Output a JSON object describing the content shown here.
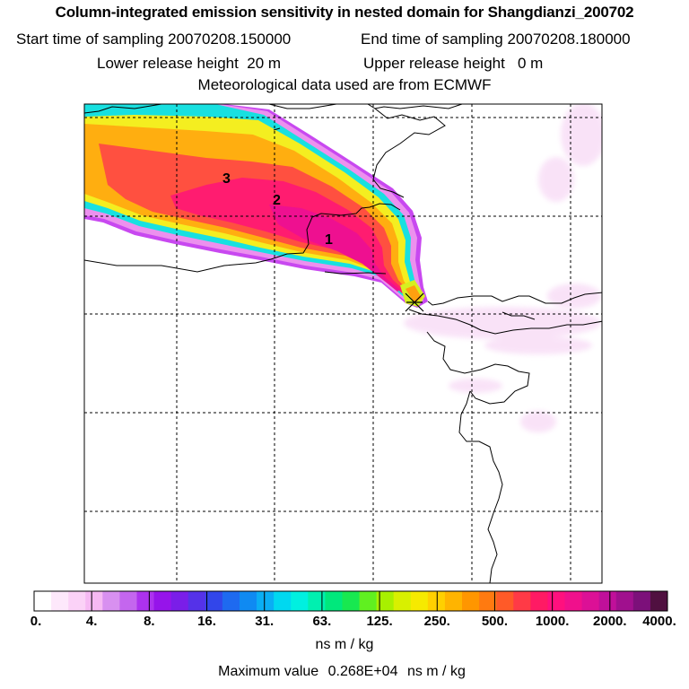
{
  "header": {
    "title": "Column-integrated emission sensitivity in nested domain for Shangdianzi_200702",
    "start_label": "Start time of sampling",
    "start_value": "20070208.150000",
    "end_label": "End time of sampling",
    "end_value": "20070208.180000",
    "lower_label": "Lower release height",
    "lower_value": "20 m",
    "upper_label": "Upper release height",
    "upper_value": "0 m",
    "met_line": "Meteorological data used are from ECMWF"
  },
  "map": {
    "plume_labels": [
      "1",
      "2",
      "3"
    ],
    "release_marker": "release-site-cross"
  },
  "colorbar": {
    "colors": [
      "#ffffff",
      "#fde8fb",
      "#fbd2f7",
      "#f6b9f3",
      "#d890f0",
      "#c466ee",
      "#ac32ee",
      "#9614ea",
      "#7a1ee8",
      "#5532e8",
      "#3246ea",
      "#1e6af0",
      "#0f8af2",
      "#0aaef4",
      "#00d8f0",
      "#00f0e0",
      "#00f0b0",
      "#00e87c",
      "#18e850",
      "#60f020",
      "#a8f000",
      "#d8f000",
      "#f6ea00",
      "#ffd000",
      "#ffb400",
      "#ff9600",
      "#ff7a10",
      "#ff5a28",
      "#ff3a46",
      "#ff1a64",
      "#ff107e",
      "#f0108c",
      "#dc1096",
      "#c0109a",
      "#a0108e",
      "#7c107a",
      "#501040"
    ],
    "tick_labels": [
      "0.",
      "4.",
      "8.",
      "16.",
      "31.",
      "63.",
      "125.",
      "250.",
      "500.",
      "1000.",
      "2000.",
      "4000."
    ],
    "units": "ns m / kg"
  },
  "footer": {
    "max_label": "Maximum value",
    "max_value": "0.268E+04",
    "max_units": "ns m / kg"
  }
}
